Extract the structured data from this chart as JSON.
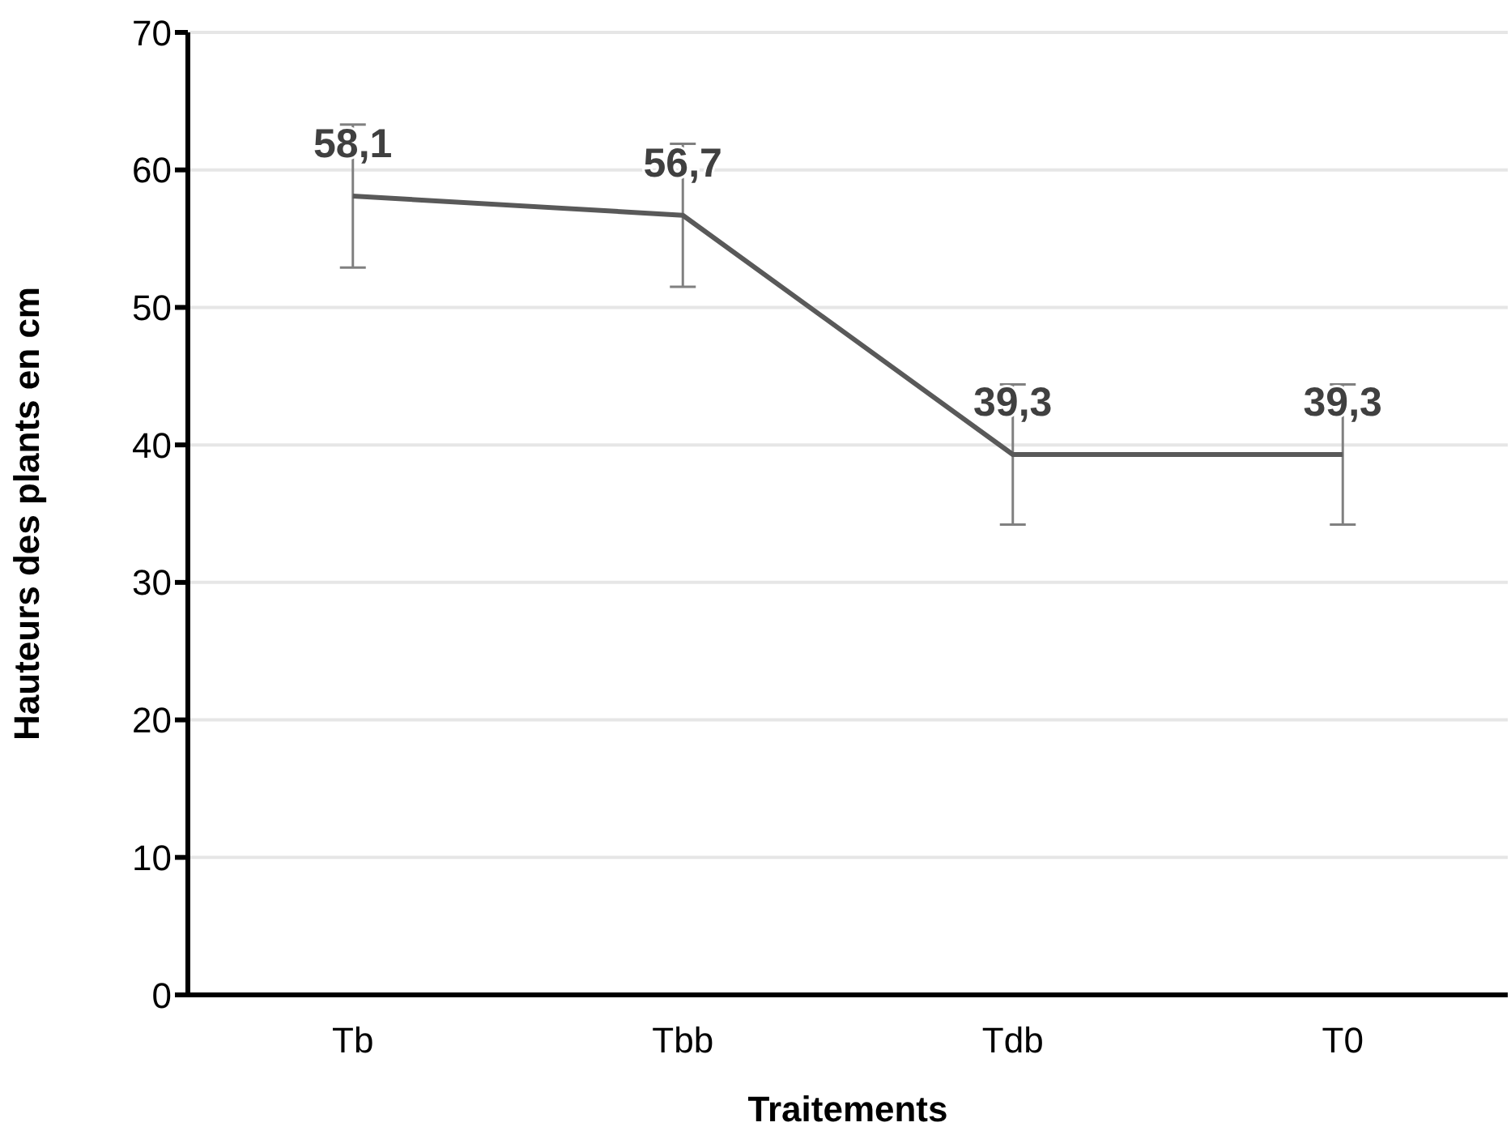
{
  "chart_data": {
    "type": "line",
    "xlabel": "Traitements",
    "ylabel": "Hauteurs des plants en cm",
    "categories": [
      "Tb",
      "Tbb",
      "Tdb",
      "T0"
    ],
    "values": [
      58.1,
      56.7,
      39.3,
      39.3
    ],
    "value_labels": [
      "58,1",
      "56,7",
      "39,3",
      "39,3"
    ],
    "errors": [
      5.2,
      5.2,
      5.1,
      5.1
    ],
    "color": "#595959",
    "ylim": [
      0,
      70
    ],
    "yticks": [
      0,
      10,
      20,
      30,
      40,
      50,
      60,
      70
    ],
    "grid": "y",
    "marker": "none",
    "line_style": "solid"
  }
}
